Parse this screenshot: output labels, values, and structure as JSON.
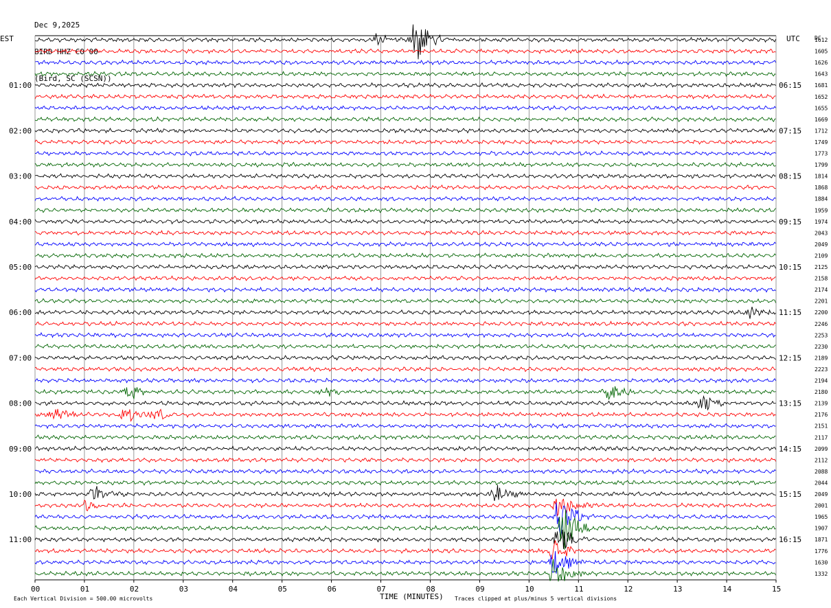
{
  "header": {
    "date": "Dec 9,2025",
    "station": "BIRD HHZ CO 00",
    "location": "(Bird, SC (SCSN))"
  },
  "left_timezone": "EST",
  "right_timezone": "UTC",
  "dc_label": "DC",
  "footer": {
    "scale_note": "Each Vertical Division =  500.00 microvolts",
    "xlabel": "TIME (MINUTES)",
    "clip_note": "Traces clipped at plus/minus 5 vertical divisions"
  },
  "colors": [
    "#000000",
    "#ff0000",
    "#0000ff",
    "#006400"
  ],
  "chart_data": {
    "type": "line",
    "title": "BIRD HHZ CO 00",
    "xlabel": "TIME (MINUTES)",
    "xlim": [
      0,
      15
    ],
    "x_ticks": [
      "00",
      "01",
      "02",
      "03",
      "04",
      "05",
      "06",
      "07",
      "08",
      "09",
      "10",
      "11",
      "12",
      "13",
      "14",
      "15"
    ],
    "rows": 48,
    "minutes_per_row": 15,
    "left_hour_labels": [
      "01:00",
      "02:00",
      "03:00",
      "04:00",
      "05:00",
      "06:00",
      "07:00",
      "08:00",
      "09:00",
      "10:00",
      "11:00"
    ],
    "right_hour_labels": [
      "06:15",
      "07:15",
      "08:15",
      "09:15",
      "10:15",
      "11:15",
      "12:15",
      "13:15",
      "14:15",
      "15:15",
      "16:15"
    ],
    "dc_offsets": [
      "1612",
      "1605",
      "1626",
      "1643",
      "1681",
      "1652",
      "1655",
      "1669",
      "1712",
      "1749",
      "1773",
      "1799",
      "1814",
      "1868",
      "1884",
      "1959",
      "1974",
      "2043",
      "2049",
      "2109",
      "2125",
      "2158",
      "2174",
      "2201",
      "2200",
      "2246",
      "2253",
      "2230",
      "2189",
      "2223",
      "2194",
      "2180",
      "2139",
      "2176",
      "2151",
      "2117",
      "2099",
      "2112",
      "2088",
      "2044",
      "2049",
      "2001",
      "1965",
      "1907",
      "1871",
      "1776",
      "1630",
      "1332"
    ],
    "events": [
      {
        "row": 0,
        "minute": 7.7,
        "amplitude": 5
      },
      {
        "row": 0,
        "minute": 6.9,
        "amplitude": 1.2
      },
      {
        "row": 31,
        "minute": 1.9,
        "amplitude": 1.6
      },
      {
        "row": 31,
        "minute": 5.8,
        "amplitude": 1
      },
      {
        "row": 31,
        "minute": 11.6,
        "amplitude": 2
      },
      {
        "row": 32,
        "minute": 13.5,
        "amplitude": 2
      },
      {
        "row": 33,
        "minute": 0.4,
        "amplitude": 1.2
      },
      {
        "row": 33,
        "minute": 1.8,
        "amplitude": 1.6
      },
      {
        "row": 33,
        "minute": 2.4,
        "amplitude": 1.4
      },
      {
        "row": 24,
        "minute": 14.5,
        "amplitude": 1.2
      },
      {
        "row": 40,
        "minute": 9.3,
        "amplitude": 2.4
      },
      {
        "row": 40,
        "minute": 1.2,
        "amplitude": 1.6
      },
      {
        "row": 41,
        "minute": 1.0,
        "amplitude": 1.4
      },
      {
        "row": 42,
        "minute": 10.6,
        "amplitude": 5
      },
      {
        "row": 43,
        "minute": 10.7,
        "amplitude": 5
      },
      {
        "row": 41,
        "minute": 10.6,
        "amplitude": 3
      },
      {
        "row": 44,
        "minute": 10.6,
        "amplitude": 3
      },
      {
        "row": 45,
        "minute": 10.5,
        "amplitude": 3
      },
      {
        "row": 46,
        "minute": 10.5,
        "amplitude": 3
      },
      {
        "row": 47,
        "minute": 10.5,
        "amplitude": 3
      }
    ]
  }
}
